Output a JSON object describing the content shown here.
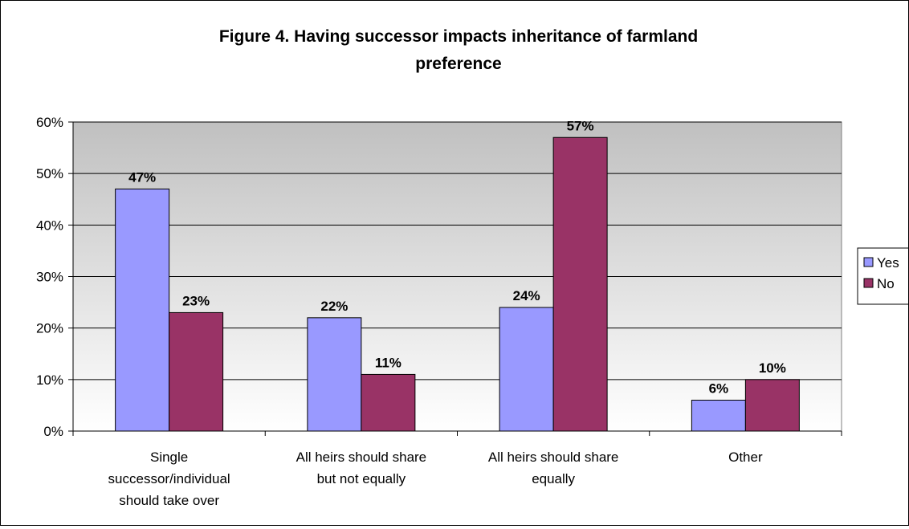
{
  "chart_data": {
    "type": "bar",
    "title": "Figure 4. Having successor impacts inheritance of farmland\npreference",
    "categories": [
      "Single\nsuccessor/individual\nshould take over",
      "All heirs should share\nbut not equally",
      "All heirs should share\nequally",
      "Other"
    ],
    "series": [
      {
        "name": "Yes",
        "values": [
          47,
          22,
          24,
          6
        ],
        "labels": [
          "47%",
          "22%",
          "24%",
          "6%"
        ],
        "color": "#9999ff"
      },
      {
        "name": "No",
        "values": [
          23,
          11,
          57,
          10
        ],
        "labels": [
          "23%",
          "11%",
          "57%",
          "10%"
        ],
        "color": "#993366"
      }
    ],
    "ylim": [
      0,
      60
    ],
    "yticks": [
      0,
      10,
      20,
      30,
      40,
      50,
      60
    ],
    "ytick_labels": [
      "0%",
      "10%",
      "20%",
      "30%",
      "40%",
      "50%",
      "60%"
    ],
    "xlabel": "",
    "ylabel": "",
    "grid": true,
    "legend_position": "right",
    "plot_background": "gradient gray"
  }
}
